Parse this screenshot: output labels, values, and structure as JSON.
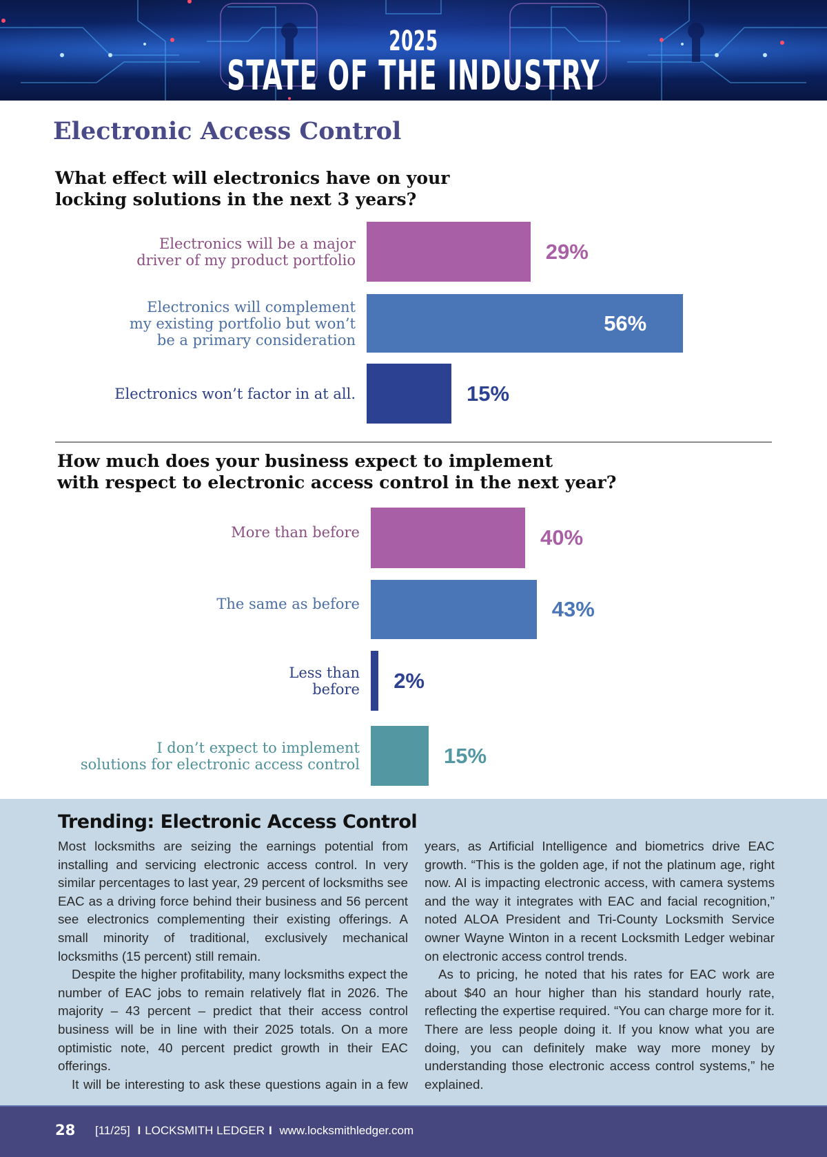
{
  "banner": {
    "year": "2025",
    "title": "STATE OF THE INDUSTRY"
  },
  "section_title": "Electronic Access Control",
  "colors": {
    "purple": "#a95fa5",
    "blue": "#4a76b8",
    "navy": "#2c4191",
    "teal": "#5397a3",
    "purple_text": "#8a4f80",
    "blue_text": "#4b6fa3",
    "navy_text": "#2c3f84",
    "teal_text": "#4d9099",
    "article_bg": "#c6d8e6",
    "footer_bg": "#474780"
  },
  "chart_data": [
    {
      "type": "bar",
      "orientation": "horizontal",
      "title": "What effect will electronics have on your locking solutions in the next 3 years?",
      "title_lines": [
        "What effect will electronics have on your",
        "locking solutions in the next 3 years?"
      ],
      "categories": [
        "Electronics will be a major driver of my product portfolio",
        "Electronics will complement my existing portfolio but won’t be a primary consideration",
        "Electronics won’t factor in at all."
      ],
      "category_lines": [
        [
          "Electronics will be a major",
          "driver of my product portfolio"
        ],
        [
          "Electronics will complement",
          "my existing portfolio but won’t",
          "be a primary consideration"
        ],
        [
          "Electronics won’t factor in at all."
        ]
      ],
      "values": [
        29,
        56,
        15
      ],
      "data_labels": [
        "29%",
        "56%",
        "15%"
      ],
      "bar_colors": [
        "#a95fa5",
        "#4a76b8",
        "#2c4191"
      ],
      "label_colors": [
        "#8a4f80",
        "#4b6fa3",
        "#2c3f84"
      ],
      "unit": "%",
      "xlim": [
        0,
        56
      ],
      "grid": false,
      "legend": "none"
    },
    {
      "type": "bar",
      "orientation": "horizontal",
      "title": "How much does your business expect to implement with respect to electronic access control in the next year?",
      "title_lines": [
        "How much does your business expect to implement",
        "with respect to electronic access control in the next year?"
      ],
      "categories": [
        "More than before",
        "The same as before",
        "Less than before",
        "I don’t expect to implement solutions for electronic access control"
      ],
      "category_lines": [
        [
          "More than before"
        ],
        [
          "The same as before"
        ],
        [
          "Less than",
          "before"
        ],
        [
          "I don’t expect to implement",
          "solutions for electronic access control"
        ]
      ],
      "values": [
        40,
        43,
        2,
        15
      ],
      "data_labels": [
        "40%",
        "43%",
        "2%",
        "15%"
      ],
      "bar_colors": [
        "#a95fa5",
        "#4a76b8",
        "#2c4191",
        "#5397a3"
      ],
      "label_colors": [
        "#8a4f80",
        "#4b6fa3",
        "#2c3f84",
        "#4d9099"
      ],
      "unit": "%",
      "xlim": [
        0,
        56
      ],
      "grid": false,
      "legend": "none"
    }
  ],
  "article": {
    "title": "Trending: Electronic Access Control",
    "left_paragraphs": [
      "Most locksmiths are seizing the earnings potential from installing and servicing electronic access control. In very similar percentages to last year, 29 percent of locksmiths see EAC as a driving force behind their business and 56 percent see electronics complementing their existing offerings. A small minority of traditional, exclusively mechanical locksmiths (15 percent) still remain.",
      "Despite the higher profitability, many locksmiths expect the number of EAC jobs to remain relatively flat in 2026.  The majority – 43 percent – predict that their access control business will be in line with their 2025 totals. On a more optimistic note, 40 percent predict growth in their EAC offerings.",
      "It will be interesting to ask these questions again in a few"
    ],
    "right_paragraphs": [
      "years, as Artificial Intelligence and biometrics drive EAC growth. “This is the golden age, if not the platinum age, right now. AI is impacting electronic access, with camera systems and the way it integrates with EAC and facial recognition,” noted ALOA President and Tri-County Locksmith Service owner Wayne Winton in a recent Locksmith Ledger webinar on electronic access control trends.",
      "As to pricing, he noted that his rates for EAC work are about $40 an hour higher than his standard hourly rate, reflecting the expertise required. “You can charge more for it. There are less people doing it. If you know what you are doing, you can definitely make way more money by understanding those electronic access control systems,” he explained."
    ]
  },
  "footer": {
    "page_number": "28",
    "issue": "[11/25]",
    "separator": "I",
    "publication": "LOCKSMITH LEDGER",
    "website": "www.locksmithledger.com"
  }
}
